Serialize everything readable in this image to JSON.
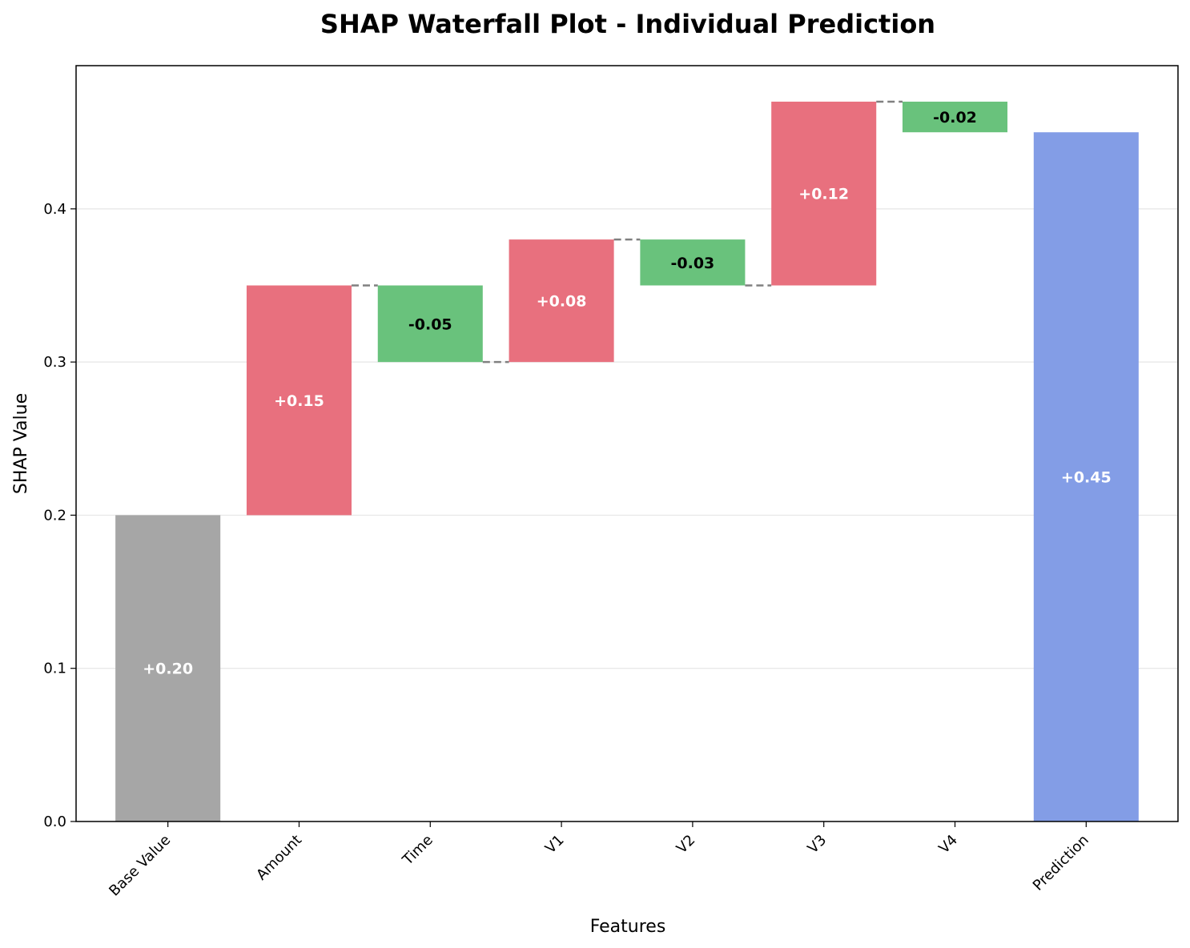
{
  "chart_data": {
    "type": "bar",
    "subtype": "waterfall",
    "title": "SHAP Waterfall Plot - Individual Prediction",
    "xlabel": "Features",
    "ylabel": "SHAP Value",
    "ylim": [
      0,
      0.4935
    ],
    "yticks": [
      0.0,
      0.1,
      0.2,
      0.3,
      0.4
    ],
    "grid": "horizontal",
    "categories": [
      "Base Value",
      "Amount",
      "Time",
      "V1",
      "V2",
      "V3",
      "V4",
      "Prediction"
    ],
    "bars": [
      {
        "category": "Base Value",
        "start": 0.0,
        "end": 0.2,
        "value": 0.2,
        "label": "+0.20",
        "kind": "base"
      },
      {
        "category": "Amount",
        "start": 0.2,
        "end": 0.35,
        "value": 0.15,
        "label": "+0.15",
        "kind": "positive"
      },
      {
        "category": "Time",
        "start": 0.35,
        "end": 0.3,
        "value": -0.05,
        "label": "-0.05",
        "kind": "negative"
      },
      {
        "category": "V1",
        "start": 0.3,
        "end": 0.38,
        "value": 0.08,
        "label": "+0.08",
        "kind": "positive"
      },
      {
        "category": "V2",
        "start": 0.38,
        "end": 0.35,
        "value": -0.03,
        "label": "-0.03",
        "kind": "negative"
      },
      {
        "category": "V3",
        "start": 0.35,
        "end": 0.47,
        "value": 0.12,
        "label": "+0.12",
        "kind": "positive"
      },
      {
        "category": "V4",
        "start": 0.47,
        "end": 0.45,
        "value": -0.02,
        "label": "-0.02",
        "kind": "negative"
      },
      {
        "category": "Prediction",
        "start": 0.0,
        "end": 0.45,
        "value": 0.45,
        "label": "+0.45",
        "kind": "prediction"
      }
    ],
    "colors": {
      "base": "#a6a6a6",
      "positive": "#e8707e",
      "negative": "#69c27c",
      "prediction": "#839de6",
      "connector": "#808080",
      "grid": "#e6e6e6"
    }
  }
}
